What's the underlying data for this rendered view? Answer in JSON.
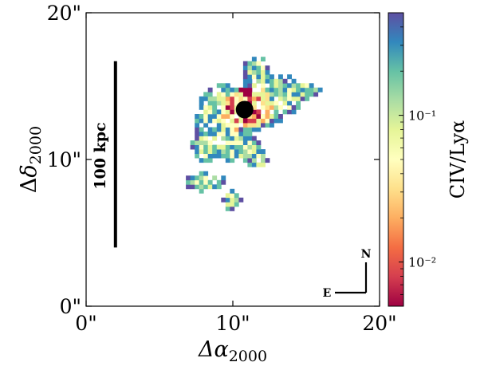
{
  "chart_data": {
    "type": "heatmap",
    "title": "",
    "xlabel": "Δα2000",
    "ylabel": "Δδ2000",
    "x": {
      "lim": [
        0,
        20
      ],
      "ticks": [
        0,
        10,
        20
      ],
      "tick_labels": [
        "0\"",
        "10\"",
        "20\""
      ]
    },
    "y": {
      "lim": [
        0,
        20
      ],
      "ticks": [
        0,
        10,
        20
      ],
      "tick_labels": [
        "0\"",
        "10\"",
        "20\""
      ]
    },
    "colorbar": {
      "label": "CIV/Lyα",
      "scale": "log",
      "range": [
        0.005,
        0.5
      ],
      "tick_labels": [
        "10⁻²",
        "10⁻¹"
      ],
      "tick_values": [
        0.01,
        0.1
      ],
      "colormap": [
        "#9e0142",
        "#d53e4f",
        "#f46d43",
        "#fdae61",
        "#fee08b",
        "#ffffbf",
        "#e6f598",
        "#abdda4",
        "#66c2a5",
        "#3288bd",
        "#5e4fa2"
      ]
    },
    "scale_bar": {
      "label": "100 kpc",
      "x": 2.0,
      "y_range": [
        4.0,
        16.7
      ]
    },
    "source_marker": {
      "x": 10.8,
      "y": 13.4,
      "color": "#000000"
    },
    "compass": {
      "north_label": "N",
      "east_label": "E"
    },
    "grid": false
  }
}
